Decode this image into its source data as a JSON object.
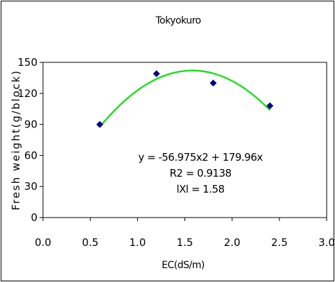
{
  "chart_data": {
    "type": "scatter",
    "title": "Tokyokuro",
    "xlabel": "EC(dS/m)",
    "ylabel": "Fresh weight(g/block)",
    "xlim": [
      0,
      3
    ],
    "ylim": [
      0,
      150
    ],
    "x_ticks": [
      "0.0",
      "0.5",
      "1.0",
      "1.5",
      "2.0",
      "2.5",
      "3.0"
    ],
    "y_ticks": [
      "0",
      "30",
      "60",
      "90",
      "120",
      "150"
    ],
    "points": [
      {
        "x": 0.6,
        "y": 90
      },
      {
        "x": 1.2,
        "y": 139
      },
      {
        "x": 1.8,
        "y": 130
      },
      {
        "x": 2.4,
        "y": 108
      }
    ],
    "trendline": {
      "a": -56.975,
      "b": 179.96,
      "c": 0,
      "x_range": [
        0.6,
        2.4
      ],
      "color": "#22dd22"
    },
    "marker_color": "#000080",
    "annotations": [
      "y = -56.975x2 + 179.96x",
      "R2 = 0.9138",
      "lXl = 1.58"
    ],
    "grid": false,
    "legend": "none"
  }
}
